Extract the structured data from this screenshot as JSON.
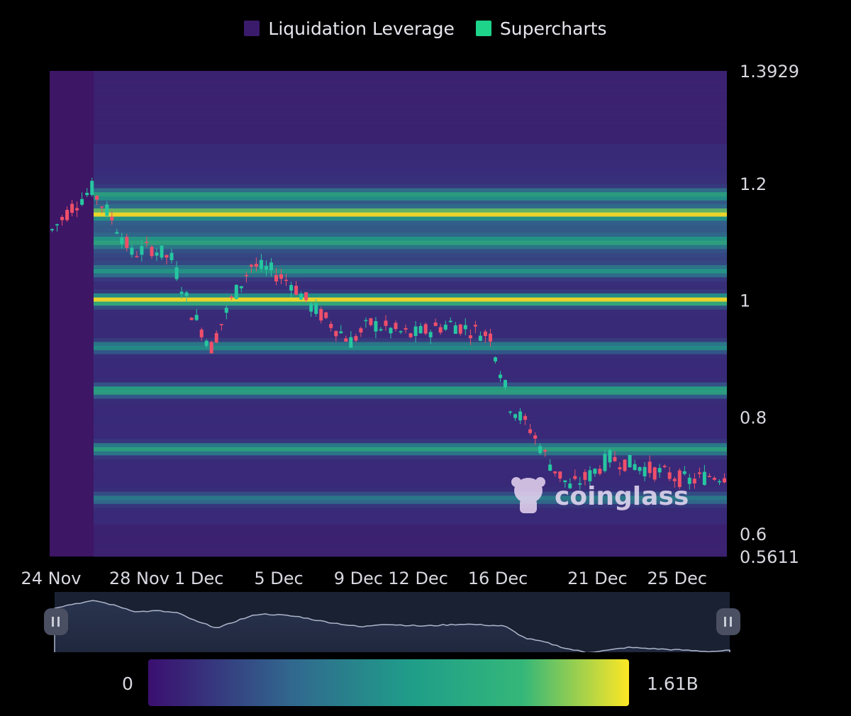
{
  "legend": {
    "items": [
      {
        "label": "Liquidation Leverage",
        "color": "#3a1a6a"
      },
      {
        "label": "Supercharts",
        "color": "#1ed38a"
      }
    ]
  },
  "watermark": {
    "text": "coinglass"
  },
  "colorbar": {
    "min_label": "0",
    "max_label": "1.61B"
  },
  "chart_data": {
    "type": "heatmap",
    "x_tick_labels": [
      "24 Nov",
      "28 Nov",
      "1 Dec",
      "5 Dec",
      "9 Dec",
      "12 Dec",
      "16 Dec",
      "21 Dec",
      "25 Dec"
    ],
    "y_tick_labels": [
      "1.3929",
      "1.2",
      "1",
      "0.8",
      "0.6",
      "0.5611"
    ],
    "ylim": [
      0.5611,
      1.3929
    ],
    "price_candles_approx": [
      {
        "date": "24 Nov",
        "price": 1.12
      },
      {
        "date": "25 Nov",
        "price": 1.16
      },
      {
        "date": "26 Nov",
        "price": 1.19
      },
      {
        "date": "27 Nov",
        "price": 1.14
      },
      {
        "date": "28 Nov",
        "price": 1.08
      },
      {
        "date": "29 Nov",
        "price": 1.09
      },
      {
        "date": "30 Nov",
        "price": 1.07
      },
      {
        "date": "1 Dec",
        "price": 0.98
      },
      {
        "date": "2 Dec",
        "price": 0.92
      },
      {
        "date": "3 Dec",
        "price": 1.0
      },
      {
        "date": "4 Dec",
        "price": 1.06
      },
      {
        "date": "5 Dec",
        "price": 1.05
      },
      {
        "date": "6 Dec",
        "price": 1.03
      },
      {
        "date": "7 Dec",
        "price": 0.99
      },
      {
        "date": "8 Dec",
        "price": 0.96
      },
      {
        "date": "9 Dec",
        "price": 0.93
      },
      {
        "date": "10 Dec",
        "price": 0.96
      },
      {
        "date": "11 Dec",
        "price": 0.95
      },
      {
        "date": "12 Dec",
        "price": 0.94
      },
      {
        "date": "13 Dec",
        "price": 0.95
      },
      {
        "date": "14 Dec",
        "price": 0.96
      },
      {
        "date": "15 Dec",
        "price": 0.95
      },
      {
        "date": "16 Dec",
        "price": 0.94
      },
      {
        "date": "17 Dec",
        "price": 0.82
      },
      {
        "date": "18 Dec",
        "price": 0.78
      },
      {
        "date": "19 Dec",
        "price": 0.72
      },
      {
        "date": "20 Dec",
        "price": 0.68
      },
      {
        "date": "21 Dec",
        "price": 0.7
      },
      {
        "date": "22 Dec",
        "price": 0.73
      },
      {
        "date": "23 Dec",
        "price": 0.72
      },
      {
        "date": "24 Dec",
        "price": 0.71
      },
      {
        "date": "25 Dec",
        "price": 0.7
      },
      {
        "date": "26 Dec",
        "price": 0.69
      },
      {
        "date": "27 Dec",
        "price": 0.7
      }
    ],
    "liquidation_levels_approx": [
      {
        "price": 1.149,
        "intensity": 0.85
      },
      {
        "price": 1.0,
        "intensity": 1.0
      },
      {
        "price": 0.845,
        "intensity": 0.62
      },
      {
        "price": 0.745,
        "intensity": 0.55
      },
      {
        "price": 1.18,
        "intensity": 0.5
      },
      {
        "price": 1.1,
        "intensity": 0.45
      },
      {
        "price": 1.05,
        "intensity": 0.4
      },
      {
        "price": 0.92,
        "intensity": 0.4
      },
      {
        "price": 0.66,
        "intensity": 0.3
      }
    ],
    "colormap": [
      "#3b0f70",
      "#31688e",
      "#1f9e89",
      "#35b779",
      "#fde725"
    ]
  }
}
